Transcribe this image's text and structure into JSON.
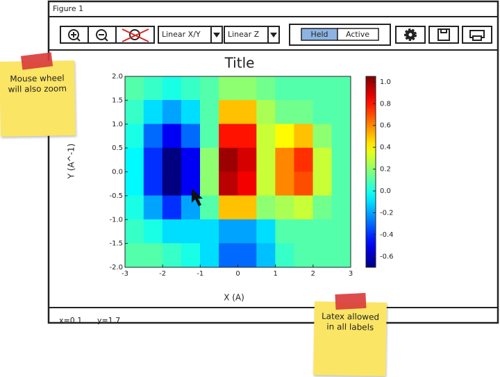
{
  "window": {
    "title": "Figure 1"
  },
  "toolbar": {
    "xy_scale": "Linear X/Y",
    "z_scale": "Linear Z",
    "toggle": [
      "Held",
      "Active"
    ]
  },
  "chart_data": {
    "type": "heatmap",
    "title": "Title",
    "x_label": "X (A)",
    "y_label": "Y (A^-1)",
    "xlim": [
      -3,
      3
    ],
    "ylim": [
      -2,
      2
    ],
    "xticks": [
      -3,
      -2,
      -1,
      0,
      1,
      2,
      3
    ],
    "yticks": [
      {
        "value": 2,
        "label": "2.0"
      },
      1.5,
      {
        "value": 1,
        "label": "1.0"
      },
      0.5,
      {
        "value": 0,
        "label": "0.0"
      },
      -0.5,
      {
        "value": -1,
        "label": "-1.0"
      },
      -1.5,
      {
        "value": -2,
        "label": "-2.0"
      }
    ],
    "values": [
      [
        0.1,
        0.05,
        0.0,
        0.05,
        0.1,
        0.2,
        0.2,
        0.15,
        0.1,
        0.1,
        0.1,
        0.1
      ],
      [
        0.05,
        -0.1,
        -0.2,
        -0.1,
        0.1,
        0.5,
        0.5,
        0.25,
        0.15,
        0.15,
        0.1,
        0.1
      ],
      [
        0.0,
        -0.3,
        -0.5,
        -0.3,
        0.1,
        0.8,
        0.8,
        0.3,
        0.4,
        0.5,
        0.2,
        0.1
      ],
      [
        -0.05,
        -0.4,
        -0.7,
        -0.5,
        0.2,
        1.0,
        0.9,
        0.3,
        0.6,
        0.75,
        0.3,
        0.1
      ],
      [
        -0.05,
        -0.4,
        -0.7,
        -0.5,
        0.2,
        0.95,
        0.85,
        0.3,
        0.6,
        0.7,
        0.3,
        0.1
      ],
      [
        0.0,
        -0.2,
        -0.4,
        -0.2,
        0.1,
        0.5,
        0.5,
        0.2,
        0.25,
        0.3,
        0.15,
        0.1
      ],
      [
        0.05,
        0.0,
        -0.1,
        -0.1,
        -0.1,
        -0.2,
        -0.2,
        -0.1,
        0.1,
        0.1,
        0.1,
        0.1
      ],
      [
        0.1,
        0.1,
        0.05,
        0.0,
        -0.1,
        -0.3,
        -0.3,
        -0.15,
        0.05,
        0.1,
        0.1,
        0.1
      ]
    ],
    "zlim": [
      -0.7,
      1.05
    ],
    "zticks": [
      {
        "value": 1,
        "label": "1.0"
      },
      0.8,
      0.6,
      0.4,
      0.2,
      {
        "value": 0,
        "label": "0.0"
      },
      -0.2,
      -0.4,
      -0.6
    ],
    "colormap": "jet"
  },
  "status": [
    "x=0.1",
    "y=1.7"
  ],
  "notes": [
    "Mouse wheel will also zoom",
    "Latex allowed in all labels"
  ]
}
